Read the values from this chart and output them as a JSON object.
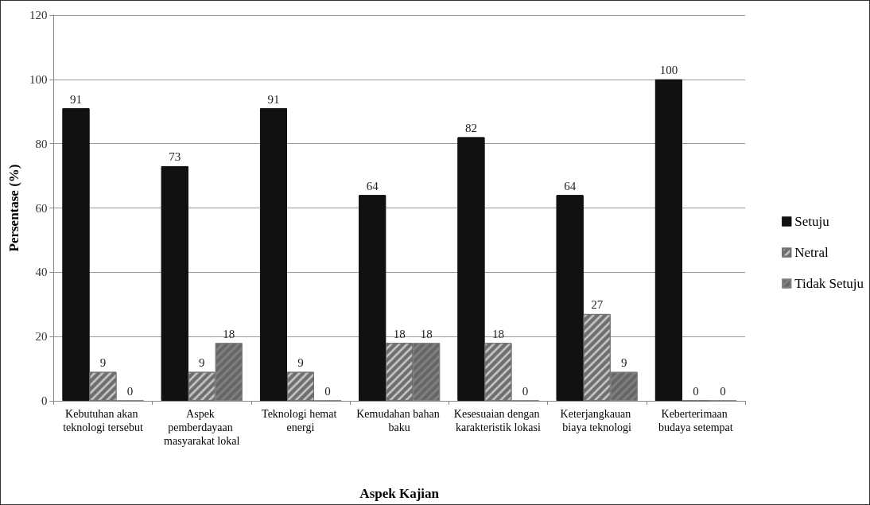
{
  "chart_data": {
    "type": "bar",
    "xlabel": "Aspek Kajian",
    "ylabel": "Persentase (%)",
    "categories": [
      "Kebutuhan akan teknologi tersebut",
      "Aspek pemberdayaan masyarakat lokal",
      "Teknologi hemat energi",
      "Kemudahan bahan baku",
      "Kesesuaian dengan karakteristik lokasi",
      "Keterjangkauan biaya teknologi",
      "Keberterimaan budaya setempat"
    ],
    "series": [
      {
        "name": "Setuju",
        "color": "#111111",
        "values": [
          91,
          73,
          91,
          64,
          82,
          64,
          100
        ]
      },
      {
        "name": "Netral",
        "color": "#6e6e6e",
        "values": [
          9,
          9,
          9,
          18,
          18,
          27,
          0
        ]
      },
      {
        "name": "Tidak Setuju",
        "color": "#7f7f7f",
        "values": [
          0,
          18,
          0,
          18,
          0,
          9,
          0
        ]
      }
    ],
    "ylim": [
      0,
      120
    ],
    "yticks": [
      0,
      20,
      40,
      60,
      80,
      100,
      120
    ],
    "grid": "y",
    "legend": "right",
    "data_labels": true
  }
}
